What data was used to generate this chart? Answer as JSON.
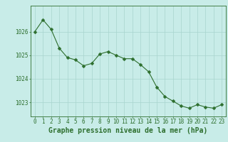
{
  "hours": [
    0,
    1,
    2,
    3,
    4,
    5,
    6,
    7,
    8,
    9,
    10,
    11,
    12,
    13,
    14,
    15,
    16,
    17,
    18,
    19,
    20,
    21,
    22,
    23
  ],
  "pressure": [
    1026.0,
    1026.5,
    1026.1,
    1025.3,
    1024.9,
    1024.8,
    1024.55,
    1024.65,
    1025.05,
    1025.15,
    1025.0,
    1024.85,
    1024.85,
    1024.6,
    1024.3,
    1023.65,
    1023.25,
    1023.05,
    1022.85,
    1022.75,
    1022.9,
    1022.8,
    1022.75,
    1022.9
  ],
  "line_color": "#2d6e2d",
  "marker": "D",
  "marker_size": 2.5,
  "background_color": "#c8ece8",
  "grid_color": "#a8d4ce",
  "tick_label_color": "#2d6e2d",
  "xlabel": "Graphe pression niveau de la mer (hPa)",
  "xlabel_color": "#2d6e2d",
  "ylim": [
    1022.4,
    1027.1
  ],
  "yticks": [
    1023,
    1024,
    1025,
    1026
  ],
  "xlim": [
    -0.5,
    23.5
  ],
  "xticks": [
    0,
    1,
    2,
    3,
    4,
    5,
    6,
    7,
    8,
    9,
    10,
    11,
    12,
    13,
    14,
    15,
    16,
    17,
    18,
    19,
    20,
    21,
    22,
    23
  ],
  "xtick_labels": [
    "0",
    "1",
    "2",
    "3",
    "4",
    "5",
    "6",
    "7",
    "8",
    "9",
    "10",
    "11",
    "12",
    "13",
    "14",
    "15",
    "16",
    "17",
    "18",
    "19",
    "20",
    "21",
    "22",
    "23"
  ],
  "spine_color": "#2d6e2d",
  "font_size_ticks": 5.5,
  "font_size_xlabel": 7
}
